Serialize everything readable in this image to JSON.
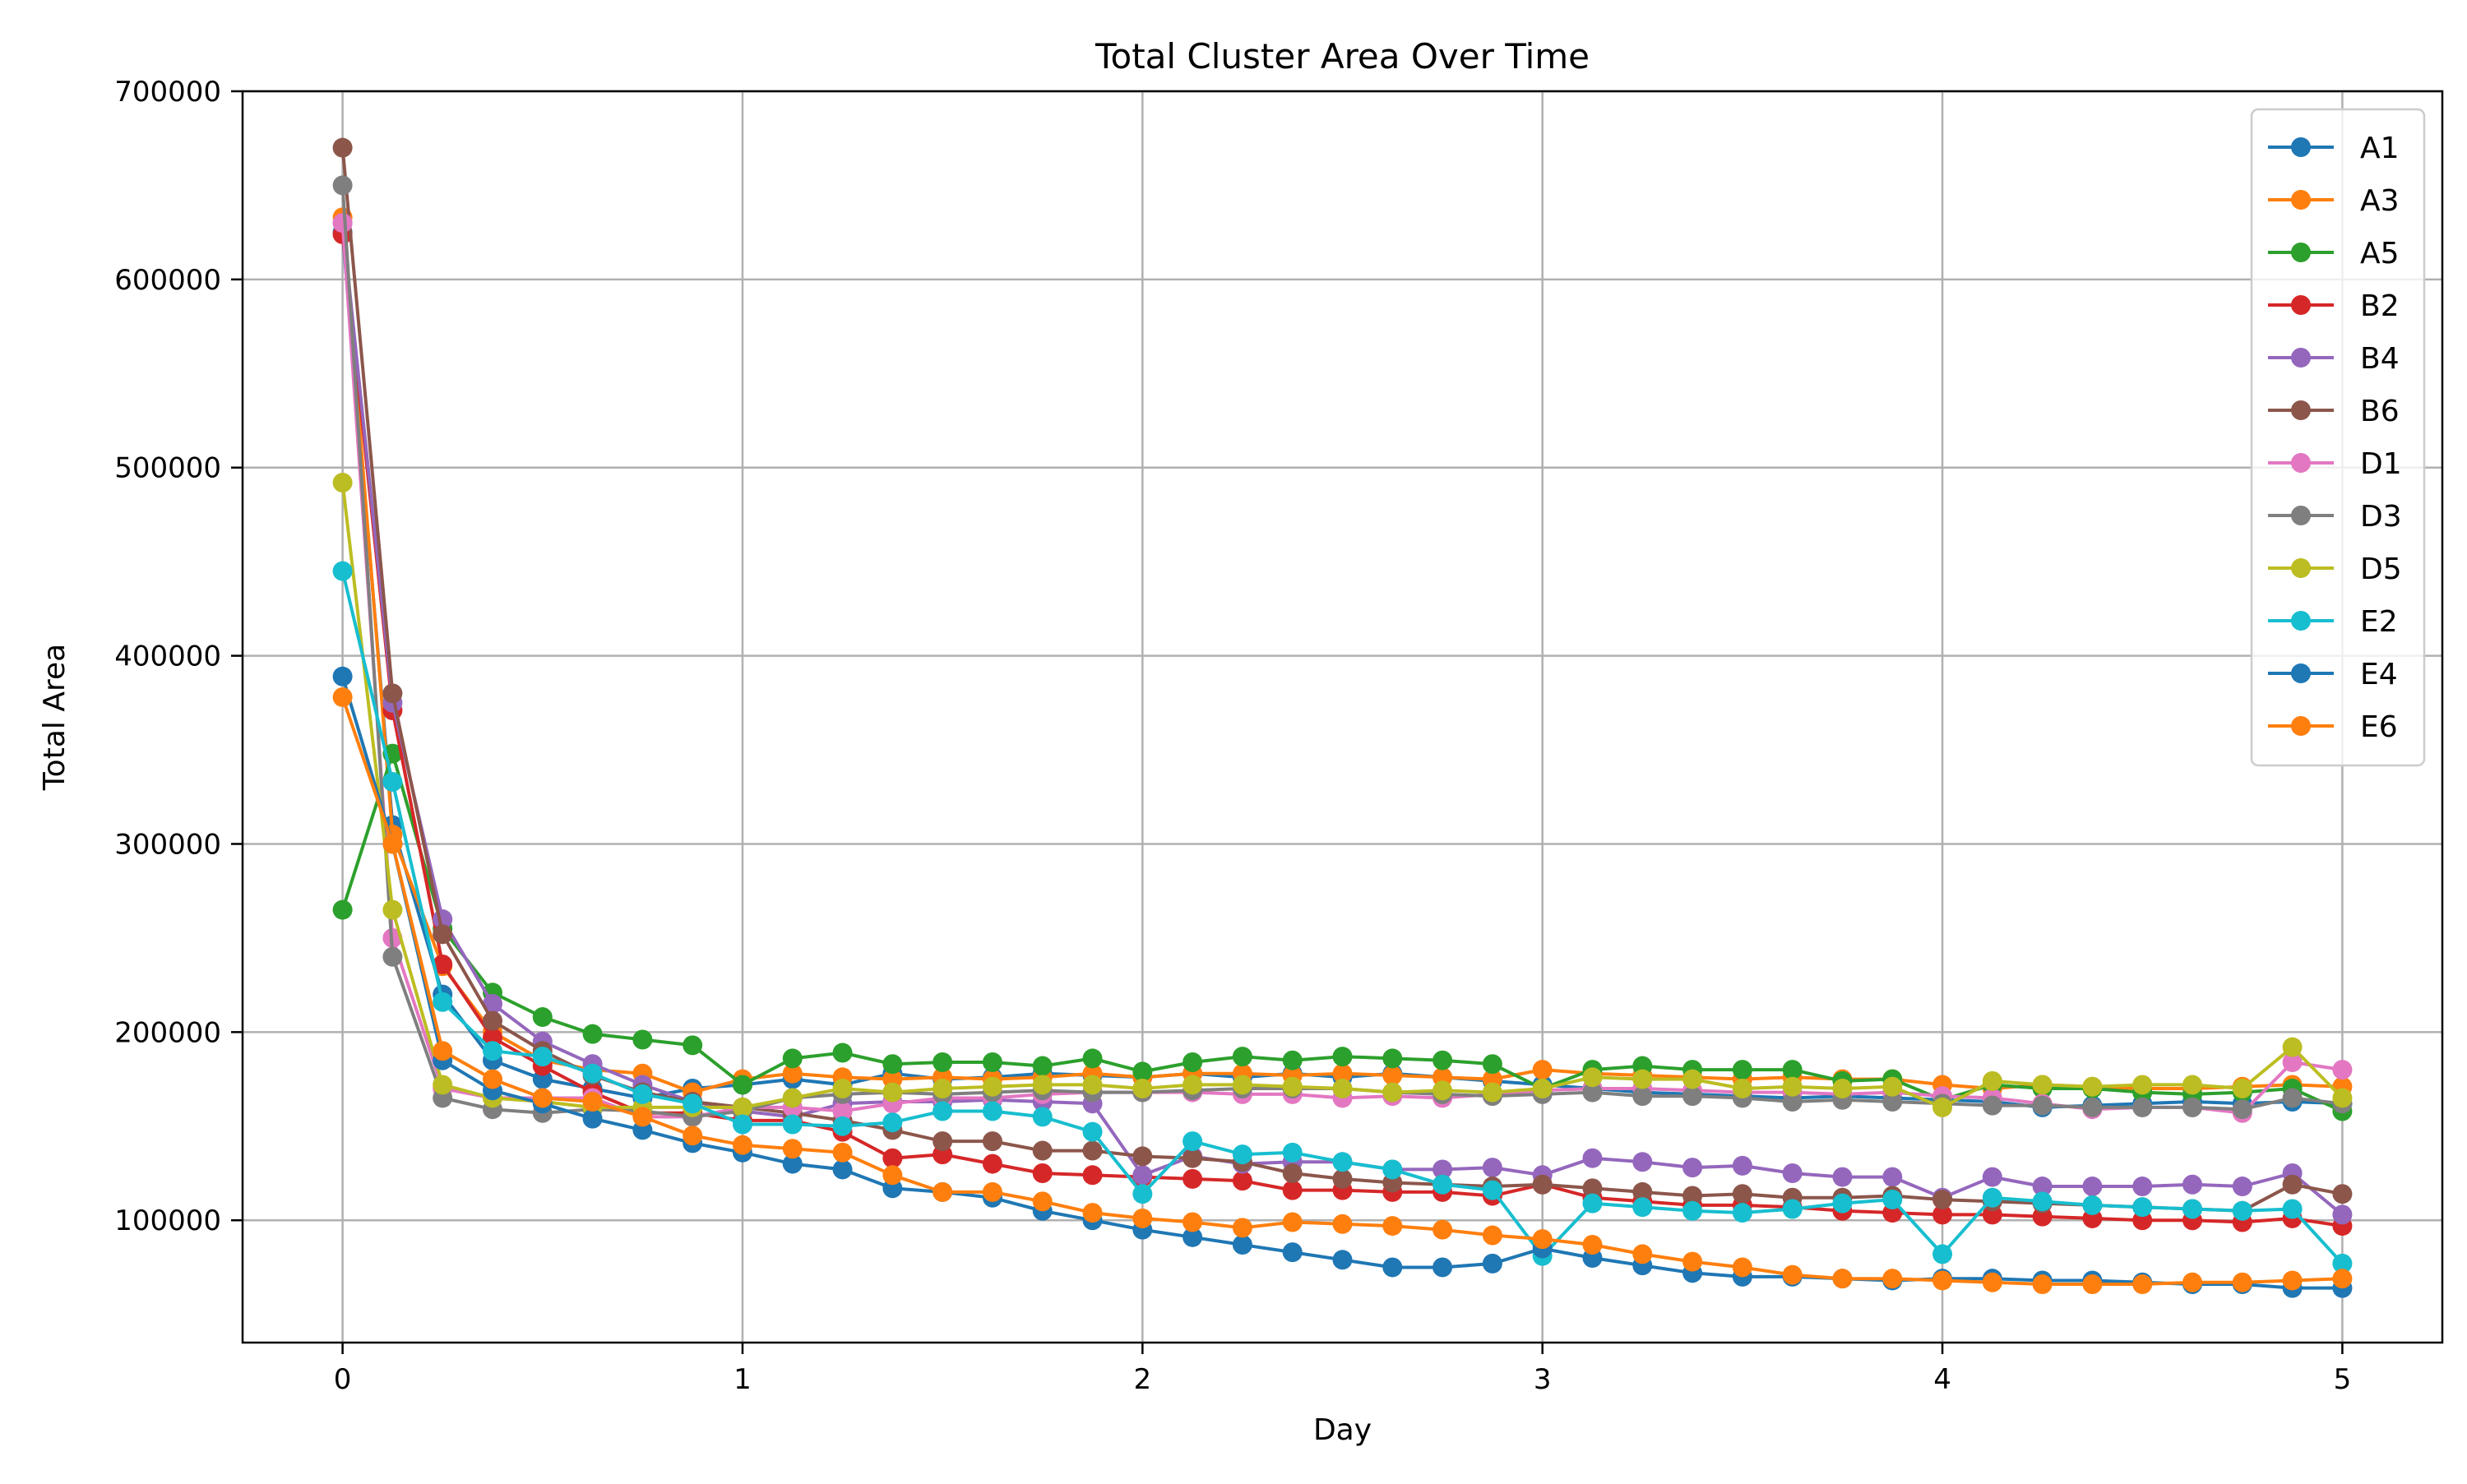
{
  "chart_data": {
    "type": "line",
    "title": "Total Cluster Area Over Time",
    "xlabel": "Day",
    "ylabel": "Total Area",
    "xlim": [
      -0.25,
      5.25
    ],
    "ylim": [
      35000,
      700000
    ],
    "xticks": [
      0,
      1,
      2,
      3,
      4,
      5
    ],
    "xtick_labels": [
      "0",
      "1",
      "2",
      "3",
      "4",
      "5"
    ],
    "yticks": [
      100000,
      200000,
      300000,
      400000,
      500000,
      600000,
      700000
    ],
    "ytick_labels": [
      "100000",
      "200000",
      "300000",
      "400000",
      "500000",
      "600000",
      "700000"
    ],
    "grid": true,
    "legend_position": "top-right",
    "x": [
      0,
      0.125,
      0.25,
      0.375,
      0.5,
      0.625,
      0.75,
      0.875,
      1,
      1.125,
      1.25,
      1.375,
      1.5,
      1.625,
      1.75,
      1.875,
      2,
      2.125,
      2.25,
      2.375,
      2.5,
      2.625,
      2.75,
      2.875,
      3,
      3.125,
      3.25,
      3.375,
      3.5,
      3.625,
      3.75,
      3.875,
      4,
      4.125,
      4.25,
      4.375,
      4.5,
      4.625,
      4.75,
      4.875,
      5
    ],
    "series": [
      {
        "name": "A1",
        "color": "#1f77b4",
        "values": [
          625000,
          310000,
          220000,
          185000,
          175000,
          170000,
          165000,
          170000,
          172000,
          175000,
          172000,
          178000,
          175000,
          176000,
          178000,
          177000,
          176000,
          178000,
          176000,
          178000,
          176000,
          178000,
          176000,
          174000,
          172000,
          170000,
          168000,
          167000,
          166000,
          165000,
          166000,
          165000,
          164000,
          163000,
          160000,
          161000,
          162000,
          163000,
          162000,
          163000,
          162000
        ]
      },
      {
        "name": "A3",
        "color": "#ff7f0e",
        "values": [
          633000,
          305000,
          235000,
          200000,
          185000,
          180000,
          178000,
          168000,
          175000,
          178000,
          176000,
          175000,
          176000,
          175000,
          176000,
          178000,
          176000,
          178000,
          178000,
          177000,
          178000,
          177000,
          176000,
          175000,
          180000,
          178000,
          177000,
          176000,
          175000,
          176000,
          175000,
          175000,
          172000,
          170000,
          172000,
          171000,
          170000,
          170000,
          171000,
          172000,
          171000
        ]
      },
      {
        "name": "A5",
        "color": "#2ca02c",
        "values": [
          265000,
          348000,
          255000,
          221000,
          208000,
          199000,
          196000,
          193000,
          172000,
          186000,
          189000,
          183000,
          184000,
          184000,
          182000,
          186000,
          179000,
          184000,
          187000,
          185000,
          187000,
          186000,
          185000,
          183000,
          170000,
          180000,
          182000,
          180000,
          180000,
          180000,
          174000,
          175000,
          164000,
          172000,
          170000,
          170000,
          168000,
          167000,
          168000,
          170000,
          158000
        ]
      },
      {
        "name": "B2",
        "color": "#d62728",
        "values": [
          624000,
          371000,
          236000,
          197000,
          182000,
          168000,
          157000,
          157000,
          153000,
          153000,
          147000,
          133000,
          135000,
          130000,
          125000,
          124000,
          123000,
          122000,
          121000,
          116000,
          116000,
          115000,
          115000,
          113000,
          119000,
          112000,
          110000,
          108000,
          108000,
          107000,
          105000,
          104000,
          103000,
          103000,
          102000,
          101000,
          100000,
          100000,
          99000,
          101000,
          97000
        ]
      },
      {
        "name": "B4",
        "color": "#9467bd",
        "values": [
          630000,
          375000,
          260000,
          215000,
          195000,
          183000,
          172000,
          163000,
          158000,
          155000,
          162000,
          163000,
          163000,
          164000,
          163000,
          162000,
          124000,
          134000,
          130000,
          131000,
          131000,
          127000,
          127000,
          128000,
          124000,
          133000,
          131000,
          128000,
          129000,
          125000,
          123000,
          123000,
          112000,
          123000,
          118000,
          118000,
          118000,
          119000,
          118000,
          125000,
          103000
        ]
      },
      {
        "name": "B6",
        "color": "#8c564b",
        "values": [
          670000,
          380000,
          252000,
          206000,
          190000,
          177000,
          168000,
          163000,
          160000,
          157000,
          153000,
          148000,
          142000,
          142000,
          137000,
          137000,
          134000,
          133000,
          131000,
          125000,
          122000,
          120000,
          119000,
          118000,
          119000,
          117000,
          115000,
          113000,
          114000,
          112000,
          112000,
          113000,
          111000,
          110000,
          109000,
          108000,
          107000,
          106000,
          105000,
          119000,
          114000
        ]
      },
      {
        "name": "D1",
        "color": "#e377c2",
        "values": [
          630000,
          250000,
          170000,
          165000,
          165000,
          165000,
          155000,
          155000,
          160000,
          160000,
          158000,
          162000,
          165000,
          165000,
          167000,
          168000,
          168000,
          168000,
          167000,
          167000,
          165000,
          166000,
          165000,
          167000,
          169000,
          170000,
          170000,
          169000,
          168000,
          168000,
          167000,
          168000,
          166000,
          165000,
          162000,
          159000,
          160000,
          160000,
          157000,
          184000,
          180000
        ]
      },
      {
        "name": "D3",
        "color": "#7f7f7f",
        "values": [
          650000,
          240000,
          165000,
          159000,
          157000,
          159000,
          158000,
          155000,
          158000,
          165000,
          167000,
          168000,
          167000,
          168000,
          169000,
          168000,
          168000,
          169000,
          170000,
          170000,
          170000,
          168000,
          167000,
          166000,
          167000,
          168000,
          166000,
          166000,
          165000,
          163000,
          164000,
          163000,
          162000,
          161000,
          161000,
          160000,
          160000,
          160000,
          159000,
          165000,
          162000
        ]
      },
      {
        "name": "D5",
        "color": "#bcbd22",
        "values": [
          492000,
          265000,
          172000,
          165000,
          163000,
          160000,
          160000,
          160000,
          160000,
          165000,
          170000,
          168000,
          170000,
          171000,
          172000,
          172000,
          170000,
          172000,
          172000,
          171000,
          170000,
          168000,
          169000,
          168000,
          170000,
          176000,
          175000,
          175000,
          170000,
          171000,
          170000,
          171000,
          160000,
          174000,
          172000,
          171000,
          172000,
          172000,
          170000,
          192000,
          165000
        ]
      },
      {
        "name": "E2",
        "color": "#17becf",
        "values": [
          445000,
          333000,
          216000,
          190000,
          187000,
          178000,
          167000,
          162000,
          151000,
          151000,
          150000,
          152000,
          158000,
          158000,
          155000,
          147000,
          114000,
          142000,
          135000,
          136000,
          131000,
          127000,
          119000,
          116000,
          81000,
          109000,
          107000,
          105000,
          104000,
          106000,
          109000,
          111000,
          82000,
          112000,
          110000,
          108000,
          107000,
          106000,
          105000,
          106000,
          77000
        ]
      },
      {
        "name": "E4",
        "color": "#1f77b4",
        "values": [
          389000,
          300000,
          185000,
          169000,
          162000,
          154000,
          148000,
          141000,
          136000,
          130000,
          127000,
          117000,
          115000,
          112000,
          105000,
          100000,
          95000,
          91000,
          87000,
          83000,
          79000,
          75000,
          75000,
          77000,
          85000,
          80000,
          76000,
          72000,
          70000,
          70000,
          69000,
          68000,
          69000,
          69000,
          68000,
          68000,
          67000,
          66000,
          66000,
          64000,
          64000
        ]
      },
      {
        "name": "E6",
        "color": "#ff7f0e",
        "values": [
          378000,
          300000,
          190000,
          175000,
          165000,
          163000,
          155000,
          145000,
          140000,
          138000,
          136000,
          124000,
          115000,
          115000,
          110000,
          104000,
          101000,
          99000,
          96000,
          99000,
          98000,
          97000,
          95000,
          92000,
          90000,
          87000,
          82000,
          78000,
          75000,
          71000,
          69000,
          69000,
          68000,
          67000,
          66000,
          66000,
          66000,
          67000,
          67000,
          68000,
          69000
        ]
      }
    ]
  }
}
